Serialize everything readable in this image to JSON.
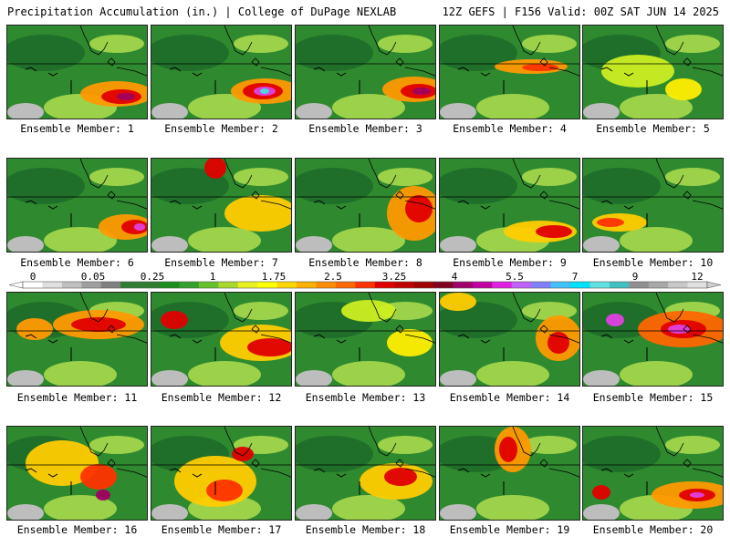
{
  "header": {
    "left": "Precipitation Accumulation (in.) | College of DuPage NEXLAB",
    "right": "12Z GEFS | F156 Valid: 00Z SAT JUN 14 2025"
  },
  "members": [
    {
      "label": "Ensemble Member: 1"
    },
    {
      "label": "Ensemble Member: 2"
    },
    {
      "label": "Ensemble Member: 3"
    },
    {
      "label": "Ensemble Member: 4"
    },
    {
      "label": "Ensemble Member: 5"
    },
    {
      "label": "Ensemble Member: 6"
    },
    {
      "label": "Ensemble Member: 7"
    },
    {
      "label": "Ensemble Member: 8"
    },
    {
      "label": "Ensemble Member: 9"
    },
    {
      "label": "Ensemble Member: 10"
    },
    {
      "label": "Ensemble Member: 11"
    },
    {
      "label": "Ensemble Member: 12"
    },
    {
      "label": "Ensemble Member: 13"
    },
    {
      "label": "Ensemble Member: 14"
    },
    {
      "label": "Ensemble Member: 15"
    },
    {
      "label": "Ensemble Member: 16"
    },
    {
      "label": "Ensemble Member: 17"
    },
    {
      "label": "Ensemble Member: 18"
    },
    {
      "label": "Ensemble Member: 19"
    },
    {
      "label": "Ensemble Member: 20"
    }
  ],
  "colorbar": {
    "labels": [
      "0",
      "0.05",
      "0.25",
      "1",
      "1.75",
      "2.5",
      "3.25",
      "4",
      "5.5",
      "7",
      "9",
      "12"
    ],
    "colors": [
      "#ffffff",
      "#e0e0e0",
      "#c0c0c0",
      "#a0a0a0",
      "#808080",
      "#2e7d32",
      "#2e7d32",
      "#1b8e1b",
      "#33a02c",
      "#66c22c",
      "#a8d82a",
      "#e8f020",
      "#ffff00",
      "#ffd700",
      "#ffb000",
      "#ff8c00",
      "#ff6600",
      "#ff3300",
      "#e00000",
      "#c00000",
      "#a00000",
      "#800020",
      "#a0006a",
      "#c000a0",
      "#e020e0",
      "#c060ff",
      "#8080ff",
      "#40c0ff",
      "#00e0ff",
      "#60e0e0",
      "#40c0c0",
      "#909090",
      "#a8a8a8",
      "#c8c8c8",
      "#e0e0e0"
    ]
  }
}
